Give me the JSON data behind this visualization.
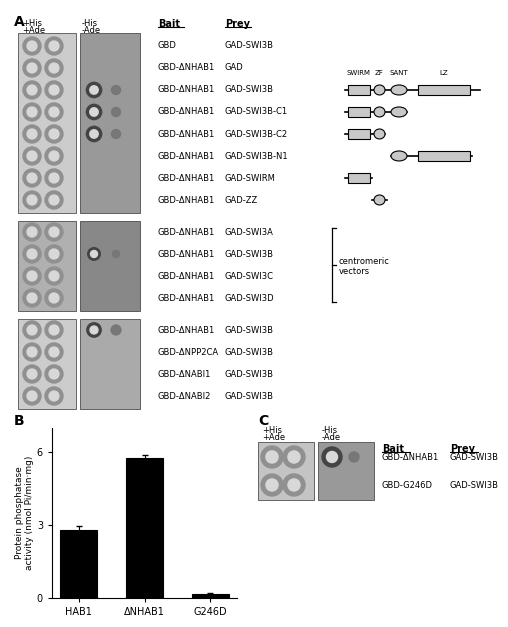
{
  "bar_values": [
    2.8,
    5.75,
    0.15
  ],
  "bar_errors": [
    0.15,
    0.12,
    0.05
  ],
  "bar_labels": [
    "HAB1",
    "ΔNHAB1",
    "G246D"
  ],
  "bar_color": "#000000",
  "ylabel": "Protein phosphatase\nactivity (nmol Pi/min·mg)",
  "ylim": [
    0,
    7
  ],
  "yticks": [
    0,
    3,
    6
  ],
  "panel_A_label": "A",
  "panel_B_label": "B",
  "panel_C_label": "C",
  "bait_prey_rows_top": [
    [
      "GBD",
      "GAD-SWI3B"
    ],
    [
      "GBD-ΔNHAB1",
      "GAD"
    ],
    [
      "GBD-ΔNHAB1",
      "GAD-SWI3B"
    ],
    [
      "GBD-ΔNHAB1",
      "GAD-SWI3B-C1"
    ],
    [
      "GBD-ΔNHAB1",
      "GAD-SWI3B-C2"
    ],
    [
      "GBD-ΔNHAB1",
      "GAD-SWI3B-N1"
    ],
    [
      "GBD-ΔNHAB1",
      "GAD-SWIRM"
    ],
    [
      "GBD-ΔNHAB1",
      "GAD-ZZ"
    ]
  ],
  "bait_prey_rows_mid": [
    [
      "GBD-ΔNHAB1",
      "GAD-SWI3A"
    ],
    [
      "GBD-ΔNHAB1",
      "GAD-SWI3B"
    ],
    [
      "GBD-ΔNHAB1",
      "GAD-SWI3C"
    ],
    [
      "GBD-ΔNHAB1",
      "GAD-SWI3D"
    ]
  ],
  "bait_prey_rows_bot": [
    [
      "GBD-ΔNHAB1",
      "GAD-SWI3B"
    ],
    [
      "GBD-ΔNPP2CA",
      "GAD-SWI3B"
    ],
    [
      "GBD-ΔNABI1",
      "GAD-SWI3B"
    ],
    [
      "GBD-ΔNABI2",
      "GAD-SWI3B"
    ]
  ],
  "bait_prey_C": [
    [
      "GBD-ΔNHAB1",
      "GAD-SWI3B"
    ],
    [
      "GBD-G246D",
      "GAD-SWI3B"
    ]
  ],
  "domain_labels": [
    "SWIRM",
    "ZF",
    "SANT",
    "LZ"
  ],
  "background_color": "#ffffff"
}
